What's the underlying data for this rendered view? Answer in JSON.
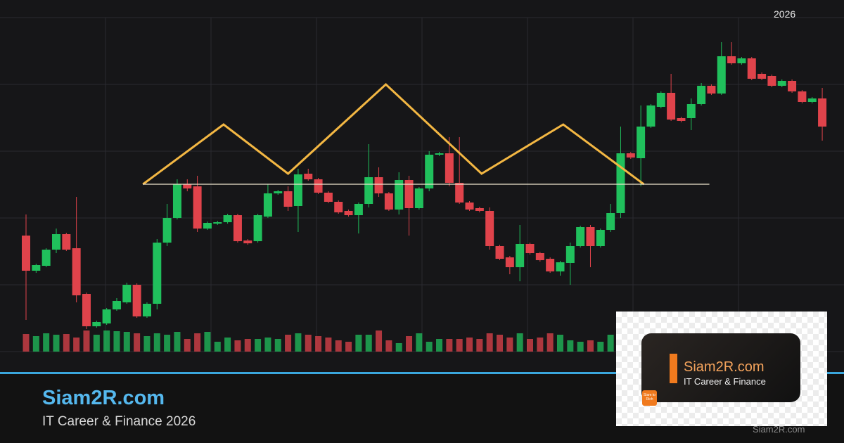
{
  "year_label": "2026",
  "brand": {
    "title": "Siam2R.com",
    "subtitle": "IT Career & Finance 2026"
  },
  "logo": {
    "title": "Siam2R.com",
    "tagline": "IT Career & Finance",
    "badge": "Siam to Rich"
  },
  "watermark": "Siam2R.com",
  "chart_data": {
    "type": "candlestick",
    "up_color": "#20c05c",
    "down_color": "#e0434b",
    "ylim": [
      0,
      500
    ],
    "open": [
      195,
      145,
      152,
      175,
      197,
      177,
      112,
      66,
      70,
      90,
      100,
      125,
      80,
      98,
      185,
      220,
      268,
      265,
      205,
      212,
      214,
      224,
      188,
      187,
      222,
      255,
      258,
      237,
      283,
      275,
      256,
      243,
      230,
      224,
      240,
      278,
      255,
      232,
      274,
      234,
      262,
      310,
      312,
      270,
      242,
      234,
      230,
      180,
      164,
      150,
      183,
      170,
      162,
      144,
      156,
      180,
      207,
      180,
      203,
      227,
      312,
      305,
      350,
      378,
      398,
      362,
      362,
      382,
      408,
      397,
      450,
      440,
      447,
      425,
      422,
      408,
      415,
      400,
      385,
      390
    ],
    "high": [
      225,
      155,
      177,
      205,
      199,
      250,
      114,
      74,
      92,
      106,
      128,
      127,
      100,
      190,
      240,
      275,
      275,
      280,
      215,
      216,
      226,
      226,
      190,
      226,
      268,
      260,
      265,
      290,
      290,
      277,
      258,
      245,
      232,
      242,
      325,
      292,
      257,
      285,
      280,
      264,
      315,
      314,
      335,
      335,
      244,
      236,
      235,
      182,
      166,
      210,
      185,
      172,
      164,
      159,
      185,
      209,
      210,
      205,
      240,
      350,
      314,
      380,
      382,
      400,
      425,
      364,
      390,
      412,
      410,
      470,
      470,
      449,
      449,
      427,
      424,
      417,
      417,
      402,
      392,
      405
    ],
    "low": [
      75,
      142,
      150,
      170,
      173,
      100,
      62,
      64,
      68,
      88,
      98,
      78,
      78,
      90,
      180,
      218,
      258,
      200,
      203,
      210,
      212,
      185,
      182,
      185,
      220,
      253,
      230,
      200,
      273,
      254,
      241,
      226,
      222,
      198,
      235,
      250,
      230,
      225,
      195,
      232,
      258,
      308,
      265,
      240,
      230,
      228,
      175,
      160,
      140,
      130,
      168,
      158,
      142,
      138,
      125,
      178,
      150,
      178,
      200,
      220,
      304,
      265,
      348,
      376,
      358,
      356,
      345,
      380,
      395,
      395,
      438,
      438,
      416,
      416,
      406,
      406,
      398,
      383,
      383,
      330
    ],
    "close": [
      145,
      153,
      175,
      197,
      175,
      110,
      66,
      72,
      90,
      102,
      125,
      80,
      98,
      185,
      220,
      268,
      262,
      205,
      213,
      214,
      224,
      187,
      184,
      224,
      255,
      258,
      236,
      282,
      275,
      256,
      243,
      228,
      224,
      240,
      278,
      255,
      232,
      274,
      234,
      262,
      310,
      312,
      270,
      242,
      232,
      230,
      180,
      162,
      150,
      183,
      170,
      160,
      144,
      157,
      180,
      207,
      180,
      203,
      227,
      312,
      306,
      350,
      380,
      398,
      360,
      358,
      382,
      408,
      397,
      450,
      440,
      447,
      418,
      418,
      408,
      415,
      400,
      385,
      390,
      350
    ],
    "volume": [
      25,
      22,
      26,
      24,
      25,
      20,
      30,
      24,
      30,
      29,
      28,
      26,
      22,
      26,
      24,
      28,
      18,
      26,
      28,
      14,
      20,
      16,
      18,
      18,
      20,
      18,
      24,
      26,
      24,
      22,
      20,
      16,
      14,
      24,
      24,
      30,
      16,
      12,
      22,
      26,
      14,
      18,
      18,
      18,
      20,
      18,
      26,
      24,
      20,
      26,
      18,
      20,
      26,
      24,
      16,
      14,
      16,
      14,
      24,
      26,
      28,
      22,
      24,
      20,
      18,
      26,
      22,
      24,
      20,
      18,
      22,
      26,
      20,
      24,
      18,
      22,
      20,
      16,
      18,
      22
    ],
    "lines": [
      {
        "color": "#f3b743",
        "x": [
          11.6,
          19.6,
          26.0,
          35.7,
          45.2,
          53.3,
          61.3
        ],
        "y": [
          268,
          353,
          283,
          410,
          283,
          353,
          268
        ]
      },
      {
        "color": "#efe6cf",
        "x": [
          11.6,
          67.8
        ],
        "y": [
          268,
          268
        ]
      }
    ]
  }
}
